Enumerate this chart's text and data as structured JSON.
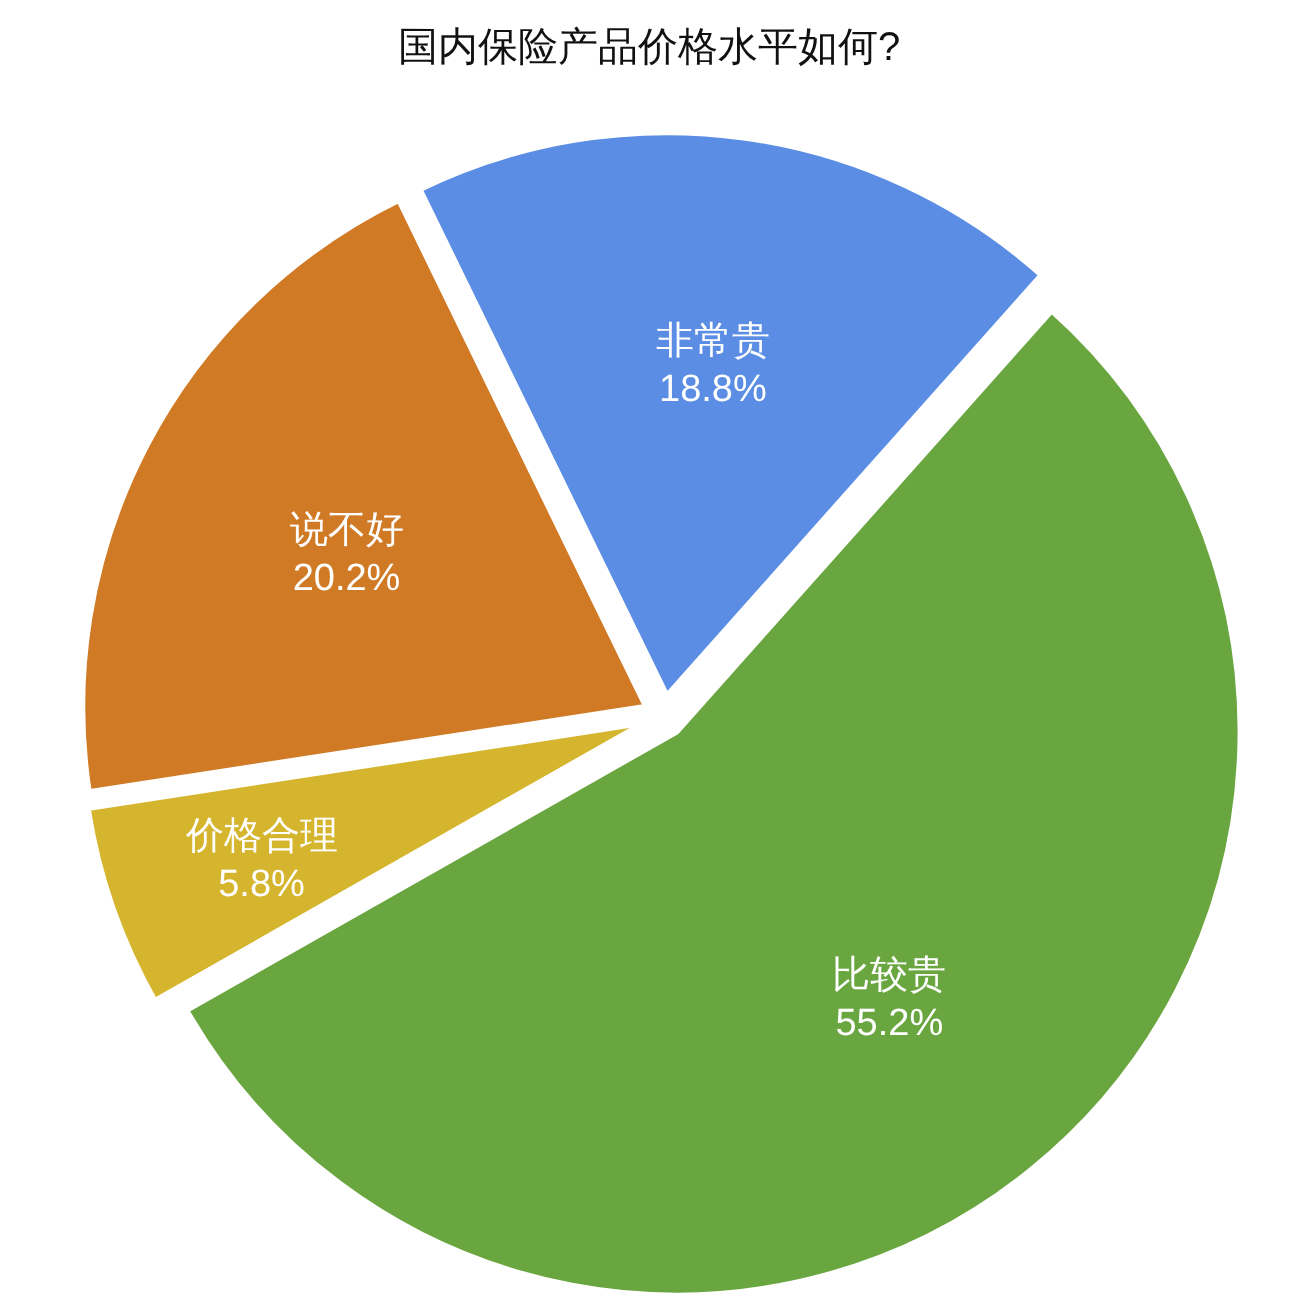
{
  "chart_data": {
    "type": "pie",
    "title": "国内保险产品价格水平如何?",
    "categories": [
      "非常贵",
      "比较贵",
      "价格合理",
      "说不好"
    ],
    "values": [
      18.8,
      55.2,
      5.8,
      20.2
    ],
    "value_labels": [
      "18.8%",
      "55.2%",
      "5.8%",
      "20.2%"
    ],
    "colors": [
      "#5a8de3",
      "#6aa640",
      "#d6b52e",
      "#d07a26"
    ]
  }
}
